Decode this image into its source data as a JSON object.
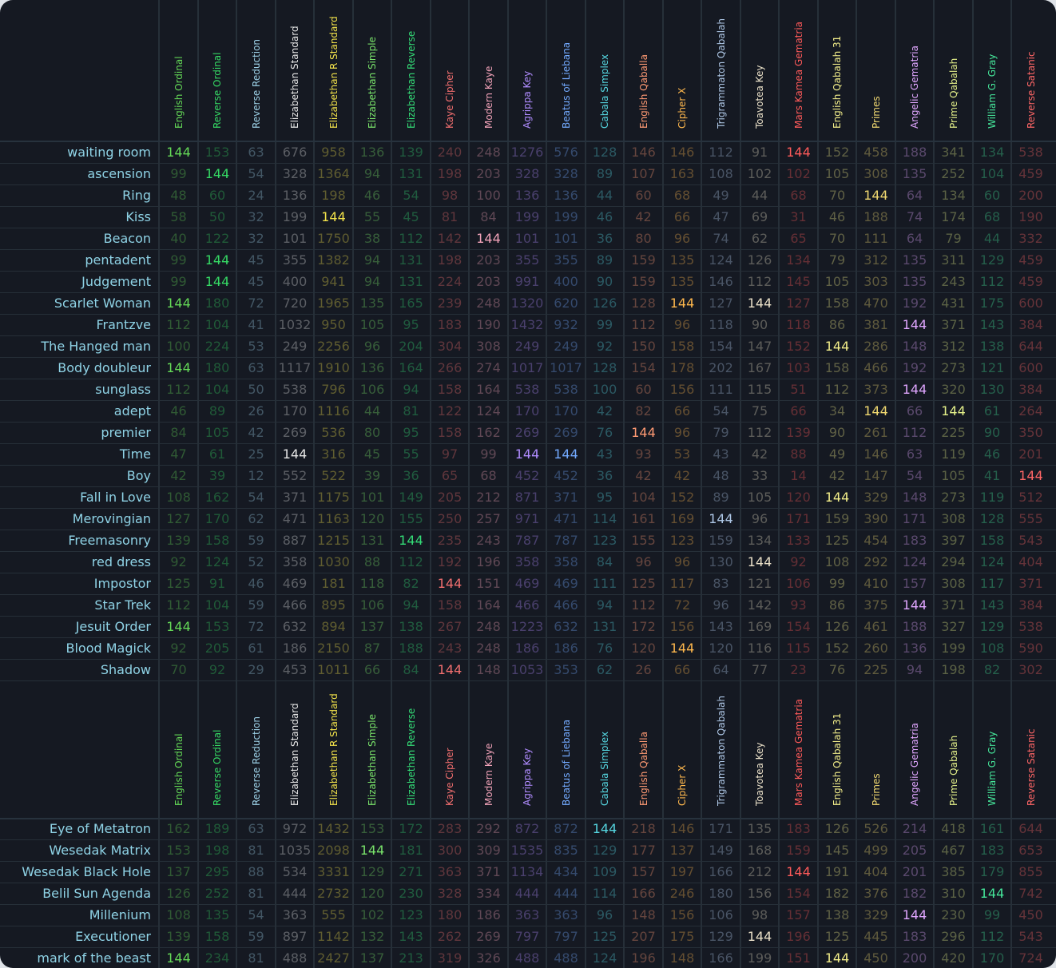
{
  "table": {
    "target_value": "144",
    "ciphers": [
      {
        "name": "English Ordinal",
        "color": "#64d957"
      },
      {
        "name": "Reverse Ordinal",
        "color": "#35d964"
      },
      {
        "name": "Reverse Reduction",
        "color": "#9cd0e6"
      },
      {
        "name": "Elizabethan Standard",
        "color": "#e6e6e6"
      },
      {
        "name": "Elizabethan R Standard",
        "color": "#f2e24a"
      },
      {
        "name": "Elizabethan Simple",
        "color": "#79e36a"
      },
      {
        "name": "Elizabethan Reverse",
        "color": "#34dd77"
      },
      {
        "name": "Kaye Cipher",
        "color": "#f26f6f"
      },
      {
        "name": "Modern Kaye",
        "color": "#f2a3b9"
      },
      {
        "name": "Agrippa Key",
        "color": "#b08cff"
      },
      {
        "name": "Beatus of Liebana",
        "color": "#73aaff"
      },
      {
        "name": "Cabala Simplex",
        "color": "#55d6e0"
      },
      {
        "name": "English Qaballa",
        "color": "#ff9a73"
      },
      {
        "name": "Cipher X",
        "color": "#ffb84d"
      },
      {
        "name": "Trigrammaton Qabalah",
        "color": "#aec7e6"
      },
      {
        "name": "Toavotea Key",
        "color": "#eae0c8"
      },
      {
        "name": "Mars Kamea Gematria",
        "color": "#ff5a5a"
      },
      {
        "name": "English Qabalah 31",
        "color": "#f3ee8a"
      },
      {
        "name": "Primes",
        "color": "#f0d870"
      },
      {
        "name": "Angelic Gematria",
        "color": "#e0a6ff"
      },
      {
        "name": "Prime Qabalah",
        "color": "#e4f08a"
      },
      {
        "name": "William G. Gray",
        "color": "#45e69a"
      },
      {
        "name": "Reverse Satanic",
        "color": "#ff6666"
      }
    ],
    "section1_rows": [
      {
        "label": "waiting room",
        "values": [
          "144",
          "153",
          "63",
          "676",
          "958",
          "136",
          "139",
          "240",
          "248",
          "1276",
          "576",
          "128",
          "146",
          "146",
          "112",
          "91",
          "144",
          "152",
          "458",
          "188",
          "341",
          "134",
          "538"
        ]
      },
      {
        "label": "ascension",
        "values": [
          "99",
          "144",
          "54",
          "328",
          "1364",
          "94",
          "131",
          "198",
          "203",
          "328",
          "328",
          "89",
          "107",
          "163",
          "108",
          "102",
          "102",
          "105",
          "308",
          "135",
          "252",
          "104",
          "459"
        ]
      },
      {
        "label": "Ring",
        "values": [
          "48",
          "60",
          "24",
          "136",
          "198",
          "46",
          "54",
          "98",
          "100",
          "136",
          "136",
          "44",
          "60",
          "68",
          "49",
          "44",
          "68",
          "70",
          "144",
          "64",
          "134",
          "60",
          "200"
        ]
      },
      {
        "label": "Kiss",
        "values": [
          "58",
          "50",
          "32",
          "199",
          "144",
          "55",
          "45",
          "81",
          "84",
          "199",
          "199",
          "46",
          "42",
          "66",
          "47",
          "69",
          "31",
          "46",
          "188",
          "74",
          "174",
          "68",
          "190"
        ]
      },
      {
        "label": "Beacon",
        "values": [
          "40",
          "122",
          "32",
          "101",
          "1750",
          "38",
          "112",
          "142",
          "144",
          "101",
          "101",
          "36",
          "80",
          "96",
          "74",
          "62",
          "65",
          "70",
          "111",
          "64",
          "79",
          "44",
          "332"
        ]
      },
      {
        "label": "pentadent",
        "values": [
          "99",
          "144",
          "45",
          "355",
          "1382",
          "94",
          "131",
          "198",
          "203",
          "355",
          "355",
          "89",
          "159",
          "135",
          "124",
          "126",
          "134",
          "79",
          "312",
          "135",
          "311",
          "129",
          "459"
        ]
      },
      {
        "label": "Judgement",
        "values": [
          "99",
          "144",
          "45",
          "400",
          "941",
          "94",
          "131",
          "224",
          "203",
          "991",
          "400",
          "90",
          "159",
          "135",
          "146",
          "112",
          "145",
          "105",
          "303",
          "135",
          "243",
          "112",
          "459"
        ]
      },
      {
        "label": "Scarlet Woman",
        "values": [
          "144",
          "180",
          "72",
          "720",
          "1965",
          "135",
          "165",
          "239",
          "248",
          "1320",
          "620",
          "126",
          "128",
          "144",
          "127",
          "144",
          "127",
          "158",
          "470",
          "192",
          "431",
          "175",
          "600"
        ]
      },
      {
        "label": "Frantzve",
        "values": [
          "112",
          "104",
          "41",
          "1032",
          "950",
          "105",
          "95",
          "183",
          "190",
          "1432",
          "932",
          "99",
          "112",
          "96",
          "118",
          "90",
          "118",
          "86",
          "381",
          "144",
          "371",
          "143",
          "384"
        ]
      },
      {
        "label": "The Hanged man",
        "values": [
          "100",
          "224",
          "53",
          "249",
          "2256",
          "96",
          "204",
          "304",
          "308",
          "249",
          "249",
          "92",
          "150",
          "158",
          "154",
          "147",
          "152",
          "144",
          "286",
          "148",
          "312",
          "138",
          "644"
        ]
      },
      {
        "label": "Body doubleur",
        "values": [
          "144",
          "180",
          "63",
          "1117",
          "1910",
          "136",
          "164",
          "266",
          "274",
          "1017",
          "1017",
          "128",
          "154",
          "178",
          "202",
          "167",
          "103",
          "158",
          "466",
          "192",
          "273",
          "121",
          "600"
        ]
      },
      {
        "label": "sunglass",
        "values": [
          "112",
          "104",
          "50",
          "538",
          "796",
          "106",
          "94",
          "158",
          "164",
          "538",
          "538",
          "100",
          "60",
          "156",
          "111",
          "115",
          "51",
          "112",
          "373",
          "144",
          "320",
          "130",
          "384"
        ]
      },
      {
        "label": "adept",
        "values": [
          "46",
          "89",
          "26",
          "170",
          "1116",
          "44",
          "81",
          "122",
          "124",
          "170",
          "170",
          "42",
          "82",
          "66",
          "54",
          "75",
          "66",
          "34",
          "144",
          "66",
          "144",
          "61",
          "264"
        ]
      },
      {
        "label": "premier",
        "values": [
          "84",
          "105",
          "42",
          "269",
          "536",
          "80",
          "95",
          "158",
          "162",
          "269",
          "269",
          "76",
          "144",
          "96",
          "79",
          "112",
          "139",
          "90",
          "261",
          "112",
          "225",
          "90",
          "350"
        ]
      },
      {
        "label": "Time",
        "values": [
          "47",
          "61",
          "25",
          "144",
          "316",
          "45",
          "55",
          "97",
          "99",
          "144",
          "144",
          "43",
          "93",
          "53",
          "43",
          "42",
          "88",
          "49",
          "146",
          "63",
          "119",
          "46",
          "201"
        ]
      },
      {
        "label": "Boy",
        "values": [
          "42",
          "39",
          "12",
          "552",
          "522",
          "39",
          "36",
          "65",
          "68",
          "452",
          "452",
          "36",
          "42",
          "42",
          "48",
          "33",
          "14",
          "42",
          "147",
          "54",
          "105",
          "41",
          "144"
        ]
      },
      {
        "label": "Fall in Love",
        "values": [
          "108",
          "162",
          "54",
          "371",
          "1175",
          "101",
          "149",
          "205",
          "212",
          "871",
          "371",
          "95",
          "104",
          "152",
          "89",
          "105",
          "120",
          "144",
          "329",
          "148",
          "273",
          "119",
          "512"
        ]
      },
      {
        "label": "Merovingian",
        "values": [
          "127",
          "170",
          "62",
          "471",
          "1163",
          "120",
          "155",
          "250",
          "257",
          "971",
          "471",
          "114",
          "161",
          "169",
          "144",
          "96",
          "171",
          "159",
          "390",
          "171",
          "308",
          "128",
          "555"
        ]
      },
      {
        "label": "Freemasonry",
        "values": [
          "139",
          "158",
          "59",
          "887",
          "1215",
          "131",
          "144",
          "235",
          "243",
          "787",
          "787",
          "123",
          "155",
          "123",
          "159",
          "134",
          "133",
          "125",
          "454",
          "183",
          "397",
          "158",
          "543"
        ]
      },
      {
        "label": "red dress",
        "values": [
          "92",
          "124",
          "52",
          "358",
          "1030",
          "88",
          "112",
          "192",
          "196",
          "358",
          "358",
          "84",
          "96",
          "96",
          "130",
          "144",
          "92",
          "108",
          "292",
          "124",
          "294",
          "124",
          "404"
        ]
      },
      {
        "label": "Impostor",
        "values": [
          "125",
          "91",
          "46",
          "469",
          "181",
          "118",
          "82",
          "144",
          "151",
          "469",
          "469",
          "111",
          "125",
          "117",
          "83",
          "121",
          "106",
          "99",
          "410",
          "157",
          "308",
          "117",
          "371"
        ]
      },
      {
        "label": "Star Trek",
        "values": [
          "112",
          "104",
          "59",
          "466",
          "895",
          "106",
          "94",
          "158",
          "164",
          "466",
          "466",
          "94",
          "112",
          "72",
          "96",
          "142",
          "93",
          "86",
          "375",
          "144",
          "371",
          "143",
          "384"
        ]
      },
      {
        "label": "Jesuit Order",
        "values": [
          "144",
          "153",
          "72",
          "632",
          "894",
          "137",
          "138",
          "267",
          "248",
          "1223",
          "632",
          "131",
          "172",
          "156",
          "143",
          "169",
          "154",
          "126",
          "461",
          "188",
          "327",
          "129",
          "538"
        ]
      },
      {
        "label": "Blood Magick",
        "values": [
          "92",
          "205",
          "61",
          "186",
          "2150",
          "87",
          "188",
          "243",
          "248",
          "186",
          "186",
          "76",
          "120",
          "144",
          "120",
          "116",
          "115",
          "152",
          "260",
          "136",
          "199",
          "108",
          "590"
        ]
      },
      {
        "label": "Shadow",
        "values": [
          "70",
          "92",
          "29",
          "453",
          "1011",
          "66",
          "84",
          "144",
          "148",
          "1053",
          "353",
          "62",
          "26",
          "66",
          "64",
          "77",
          "23",
          "76",
          "225",
          "94",
          "198",
          "82",
          "302"
        ]
      }
    ],
    "section2_rows": [
      {
        "label": "Eye of Metatron",
        "values": [
          "162",
          "189",
          "63",
          "972",
          "1432",
          "153",
          "172",
          "283",
          "292",
          "872",
          "872",
          "144",
          "218",
          "146",
          "171",
          "135",
          "183",
          "126",
          "526",
          "214",
          "418",
          "161",
          "644"
        ]
      },
      {
        "label": "Wesedak Matrix",
        "values": [
          "153",
          "198",
          "81",
          "1035",
          "2098",
          "144",
          "181",
          "300",
          "309",
          "1535",
          "835",
          "129",
          "177",
          "137",
          "149",
          "168",
          "159",
          "145",
          "499",
          "205",
          "467",
          "183",
          "653"
        ]
      },
      {
        "label": "Wesedak Black Hole",
        "values": [
          "137",
          "295",
          "88",
          "534",
          "3331",
          "129",
          "271",
          "363",
          "371",
          "1134",
          "434",
          "109",
          "157",
          "197",
          "166",
          "212",
          "144",
          "191",
          "404",
          "201",
          "385",
          "179",
          "855"
        ]
      },
      {
        "label": "Belil Sun Agenda",
        "values": [
          "126",
          "252",
          "81",
          "444",
          "2732",
          "120",
          "230",
          "328",
          "334",
          "444",
          "444",
          "114",
          "166",
          "246",
          "180",
          "156",
          "154",
          "182",
          "376",
          "182",
          "310",
          "144",
          "742"
        ]
      },
      {
        "label": "Millenium",
        "values": [
          "108",
          "135",
          "54",
          "363",
          "555",
          "102",
          "123",
          "180",
          "186",
          "363",
          "363",
          "96",
          "148",
          "156",
          "106",
          "98",
          "157",
          "138",
          "329",
          "144",
          "230",
          "99",
          "450"
        ]
      },
      {
        "label": "Executioner",
        "values": [
          "139",
          "158",
          "59",
          "897",
          "1142",
          "132",
          "143",
          "262",
          "269",
          "797",
          "797",
          "125",
          "207",
          "175",
          "129",
          "144",
          "196",
          "125",
          "445",
          "183",
          "296",
          "112",
          "543"
        ]
      },
      {
        "label": "mark of the beast",
        "values": [
          "144",
          "234",
          "81",
          "488",
          "2427",
          "137",
          "213",
          "319",
          "326",
          "488",
          "488",
          "124",
          "196",
          "148",
          "166",
          "199",
          "151",
          "144",
          "450",
          "200",
          "420",
          "170",
          "724"
        ]
      }
    ]
  }
}
